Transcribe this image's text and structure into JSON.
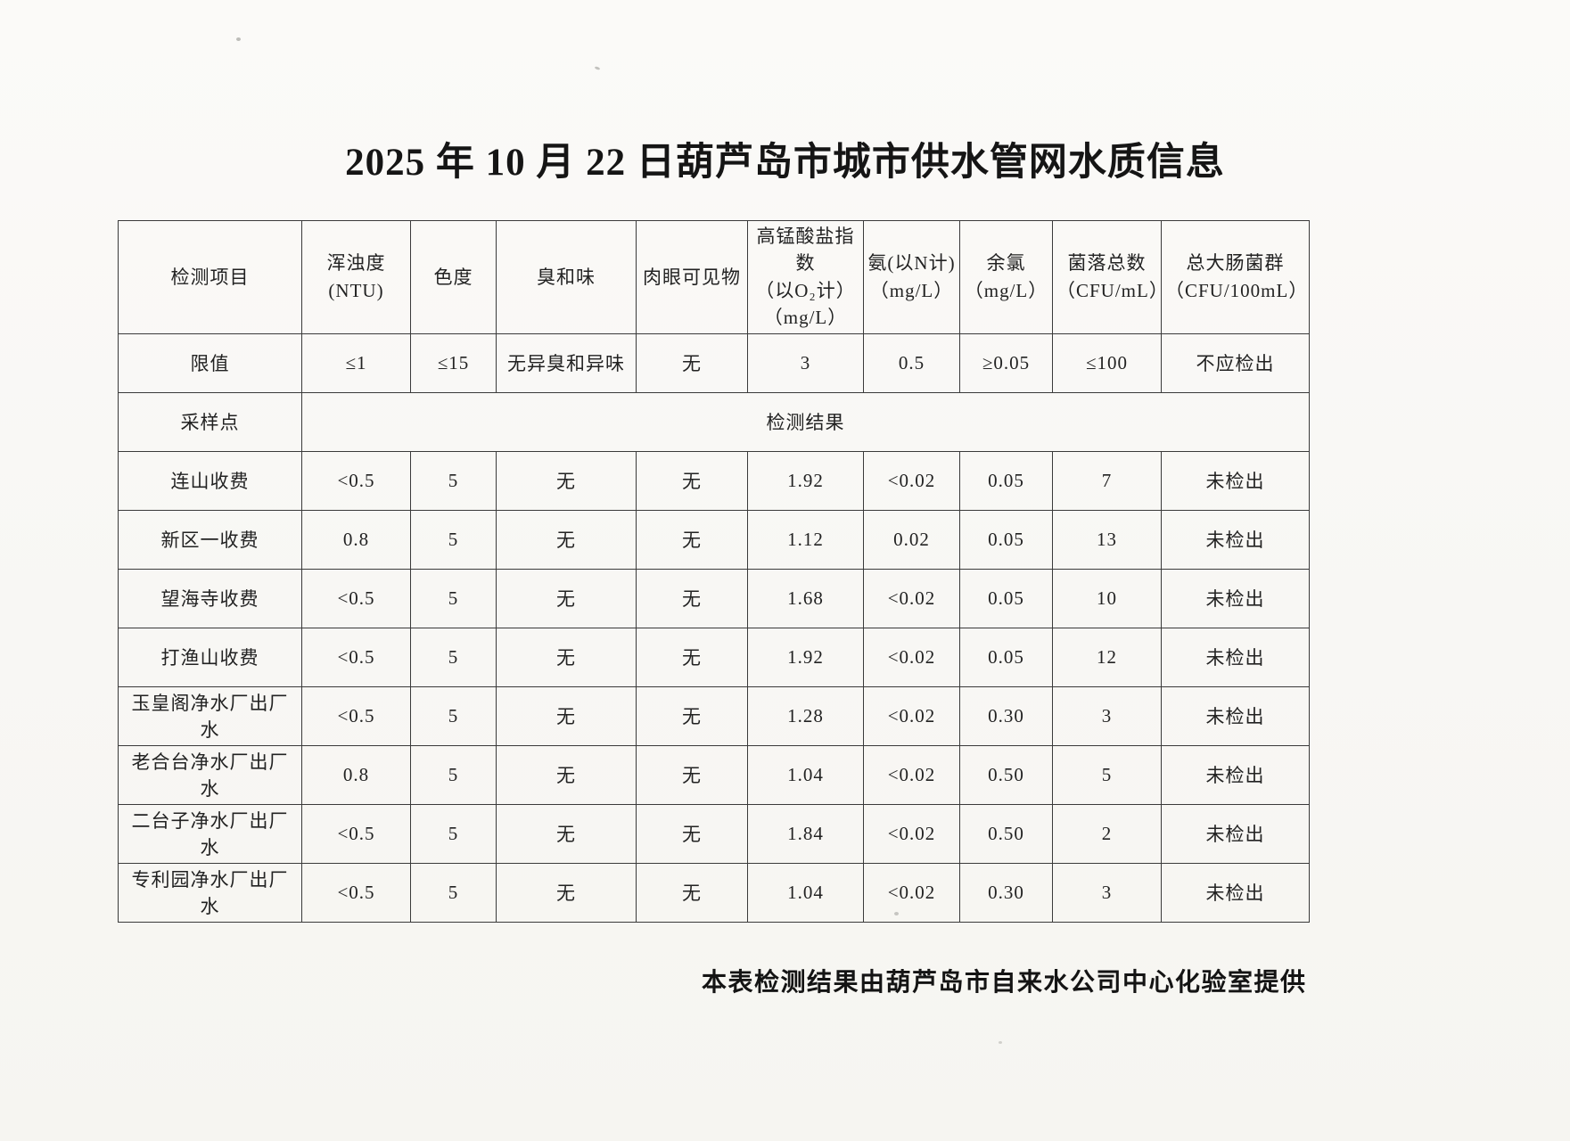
{
  "title": "2025 年 10 月 22 日葫芦岛市城市供水管网水质信息",
  "footer_note": "本表检测结果由葫芦岛市自来水公司中心化验室提供",
  "table": {
    "columns": [
      {
        "id": "item",
        "lines": [
          "检测项目"
        ]
      },
      {
        "id": "turbidity",
        "lines": [
          "浑浊度(NTU)"
        ]
      },
      {
        "id": "color",
        "lines": [
          "色度"
        ]
      },
      {
        "id": "odor",
        "lines": [
          "臭和味"
        ]
      },
      {
        "id": "visible",
        "lines": [
          "肉眼可见物"
        ]
      },
      {
        "id": "permanganate",
        "lines": [
          "高锰酸盐指数",
          "（以O₂计）",
          "（mg/L）"
        ]
      },
      {
        "id": "ammonia",
        "lines": [
          "氨(以N计)",
          "（mg/L）"
        ]
      },
      {
        "id": "chlorine",
        "lines": [
          "余氯",
          "（mg/L）"
        ]
      },
      {
        "id": "colony",
        "lines": [
          "菌落总数",
          "（CFU/mL）"
        ]
      },
      {
        "id": "coliform",
        "lines": [
          "总大肠菌群",
          "（CFU/100mL）"
        ]
      }
    ],
    "limit_row": {
      "label": "限值",
      "values": [
        "≤1",
        "≤15",
        "无异臭和异味",
        "无",
        "3",
        "0.5",
        "≥0.05",
        "≤100",
        "不应检出"
      ]
    },
    "sampling_row": {
      "label": "采样点",
      "result_label": "检测结果"
    },
    "rows": [
      {
        "site": "连山收费",
        "values": [
          "<0.5",
          "5",
          "无",
          "无",
          "1.92",
          "<0.02",
          "0.05",
          "7",
          "未检出"
        ]
      },
      {
        "site": "新区一收费",
        "values": [
          "0.8",
          "5",
          "无",
          "无",
          "1.12",
          "0.02",
          "0.05",
          "13",
          "未检出"
        ]
      },
      {
        "site": "望海寺收费",
        "values": [
          "<0.5",
          "5",
          "无",
          "无",
          "1.68",
          "<0.02",
          "0.05",
          "10",
          "未检出"
        ]
      },
      {
        "site": "打渔山收费",
        "values": [
          "<0.5",
          "5",
          "无",
          "无",
          "1.92",
          "<0.02",
          "0.05",
          "12",
          "未检出"
        ]
      },
      {
        "site": "玉皇阁净水厂出厂水",
        "values": [
          "<0.5",
          "5",
          "无",
          "无",
          "1.28",
          "<0.02",
          "0.30",
          "3",
          "未检出"
        ]
      },
      {
        "site": "老合台净水厂出厂水",
        "values": [
          "0.8",
          "5",
          "无",
          "无",
          "1.04",
          "<0.02",
          "0.50",
          "5",
          "未检出"
        ]
      },
      {
        "site": "二台子净水厂出厂水",
        "values": [
          "<0.5",
          "5",
          "无",
          "无",
          "1.84",
          "<0.02",
          "0.50",
          "2",
          "未检出"
        ]
      },
      {
        "site": "专利园净水厂出厂水",
        "values": [
          "<0.5",
          "5",
          "无",
          "无",
          "1.04",
          "<0.02",
          "0.30",
          "3",
          "未检出"
        ]
      }
    ]
  }
}
